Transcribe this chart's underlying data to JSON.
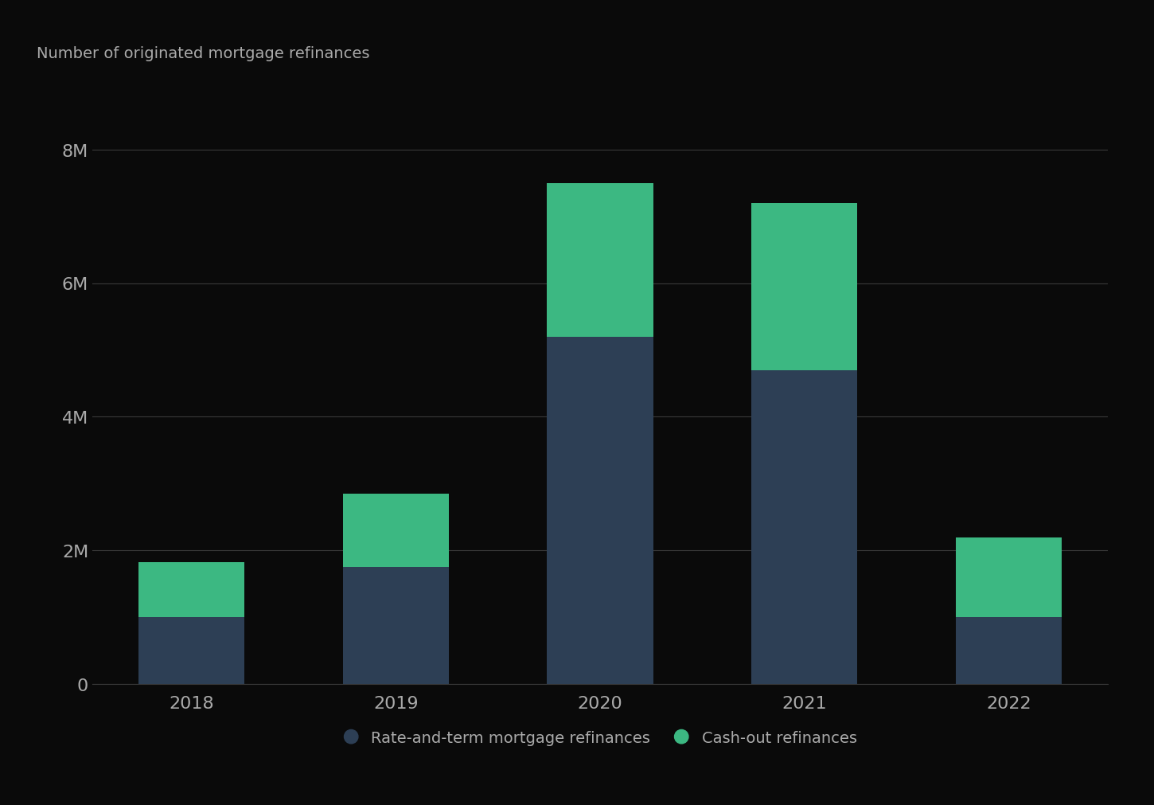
{
  "years": [
    "2018",
    "2019",
    "2020",
    "2021",
    "2022"
  ],
  "rate_and_term": [
    1.0,
    1.75,
    5.2,
    4.7,
    1.0
  ],
  "cash_out": [
    0.82,
    1.1,
    2.3,
    2.5,
    1.2
  ],
  "rate_and_term_color": "#2d3f55",
  "cash_out_color": "#3cb882",
  "background_color": "#0a0a0a",
  "text_color": "#aaaaaa",
  "grid_color": "#3a3a3a",
  "yticks": [
    0,
    2,
    4,
    6,
    8
  ],
  "ytick_labels": [
    "0",
    "2M",
    "4M",
    "6M",
    "8M"
  ],
  "ylim": [
    0,
    8.8
  ],
  "ylabel_text": "Number of originated mortgage refinances",
  "legend_label_1": "Rate-and-term mortgage refinances",
  "legend_label_2": "Cash-out refinances",
  "bar_width": 0.52
}
